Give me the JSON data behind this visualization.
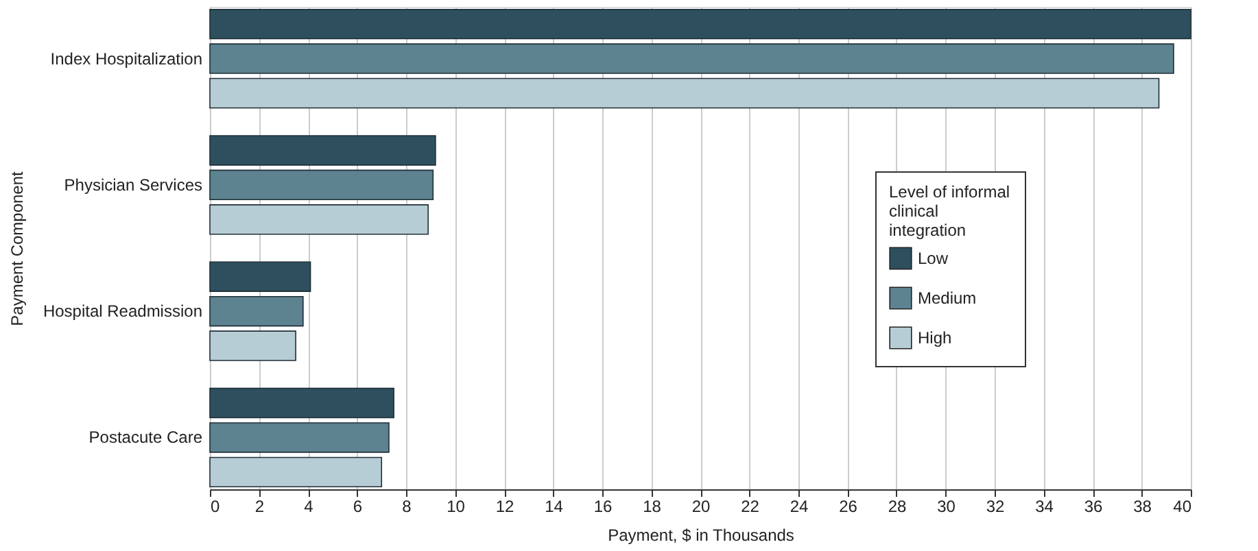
{
  "chart_data": {
    "type": "bar",
    "orientation": "horizontal",
    "xlabel": "Payment, $ in Thousands",
    "ylabel": "Payment Component",
    "legend_title": "Level of informal clinical integration",
    "categories": [
      "Index Hospitalization",
      "Physician Services",
      "Hospital Readmission",
      "Postacute Care"
    ],
    "series": [
      {
        "name": "Low",
        "color": "#2d4f5e",
        "values": [
          40,
          9.2,
          4.1,
          7.5
        ]
      },
      {
        "name": "Medium",
        "color": "#5d8290",
        "values": [
          39.3,
          9.1,
          3.8,
          7.3
        ]
      },
      {
        "name": "High",
        "color": "#b7cdd6",
        "values": [
          38.7,
          8.9,
          3.5,
          7.0
        ]
      }
    ],
    "xlim": [
      0,
      40
    ],
    "xticks": [
      0,
      2,
      4,
      6,
      8,
      10,
      12,
      14,
      16,
      18,
      20,
      22,
      24,
      26,
      28,
      30,
      32,
      34,
      36,
      38,
      40
    ],
    "grid": "x",
    "legend": "right"
  }
}
